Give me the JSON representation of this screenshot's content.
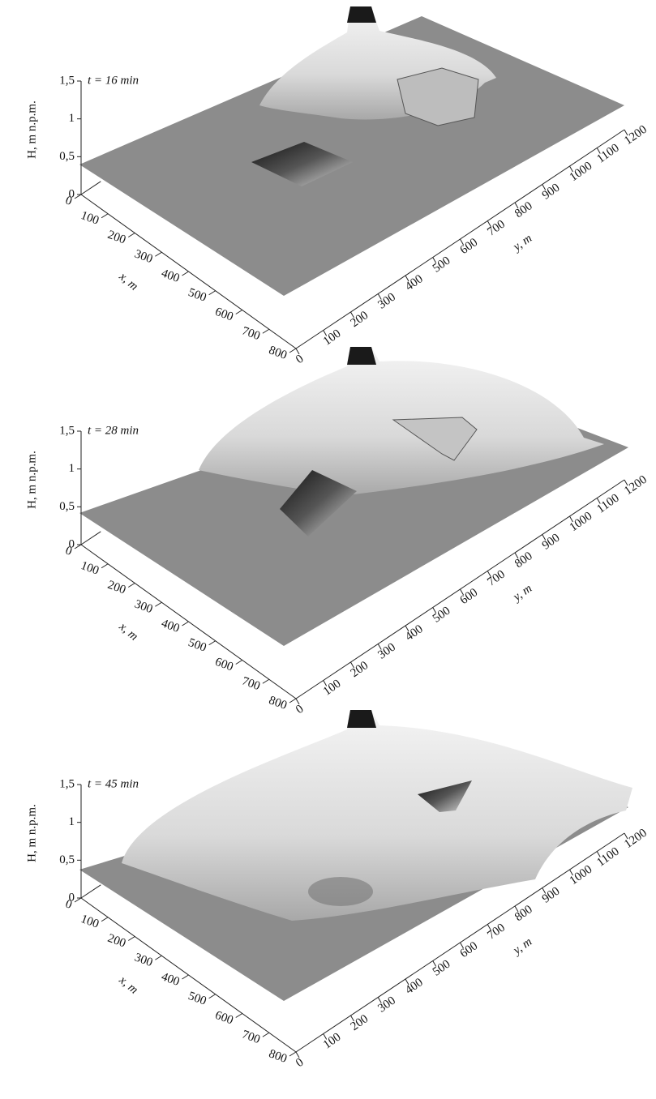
{
  "chart_data": [
    {
      "type": "surface3d",
      "title": "t = 16 min",
      "x_label": "x, m",
      "y_label": "y, m",
      "z_label": "H, m n.p.m.",
      "xlim": [
        0,
        800
      ],
      "xticks": [
        0,
        100,
        200,
        300,
        400,
        500,
        600,
        700,
        800
      ],
      "ylim": [
        0,
        1200
      ],
      "yticks": [
        0,
        100,
        200,
        300,
        400,
        500,
        600,
        700,
        800,
        900,
        1000,
        1100,
        1200
      ],
      "zlim": [
        0,
        1.5
      ],
      "zticks": [
        0,
        {
          "value": 0.5,
          "label": "0,5"
        },
        1,
        {
          "value": 1.5,
          "label": "1,5"
        }
      ]
    },
    {
      "type": "surface3d",
      "title": "t = 28 min",
      "x_label": "x, m",
      "y_label": "y, m",
      "z_label": "H, m n.p.m.",
      "xlim": [
        0,
        800
      ],
      "xticks": [
        0,
        100,
        200,
        300,
        400,
        500,
        600,
        700,
        800
      ],
      "ylim": [
        0,
        1200
      ],
      "yticks": [
        0,
        100,
        200,
        300,
        400,
        500,
        600,
        700,
        800,
        900,
        1000,
        1100,
        1200
      ],
      "zlim": [
        0,
        1.5
      ],
      "zticks": [
        0,
        {
          "value": 0.5,
          "label": "0,5"
        },
        1,
        {
          "value": 1.5,
          "label": "1,5"
        }
      ]
    },
    {
      "type": "surface3d",
      "title": "t = 45 min",
      "x_label": "x, m",
      "y_label": "y, m",
      "z_label": "H, m n.p.m.",
      "xlim": [
        0,
        800
      ],
      "xticks": [
        0,
        100,
        200,
        300,
        400,
        500,
        600,
        700,
        800
      ],
      "ylim": [
        0,
        1200
      ],
      "yticks": [
        0,
        100,
        200,
        300,
        400,
        500,
        600,
        700,
        800,
        900,
        1000,
        1100,
        1200
      ],
      "zlim": [
        0,
        1.5
      ],
      "zticks": [
        0,
        {
          "value": 0.5,
          "label": "0,5"
        },
        1,
        {
          "value": 1.5,
          "label": "1,5"
        }
      ]
    }
  ]
}
